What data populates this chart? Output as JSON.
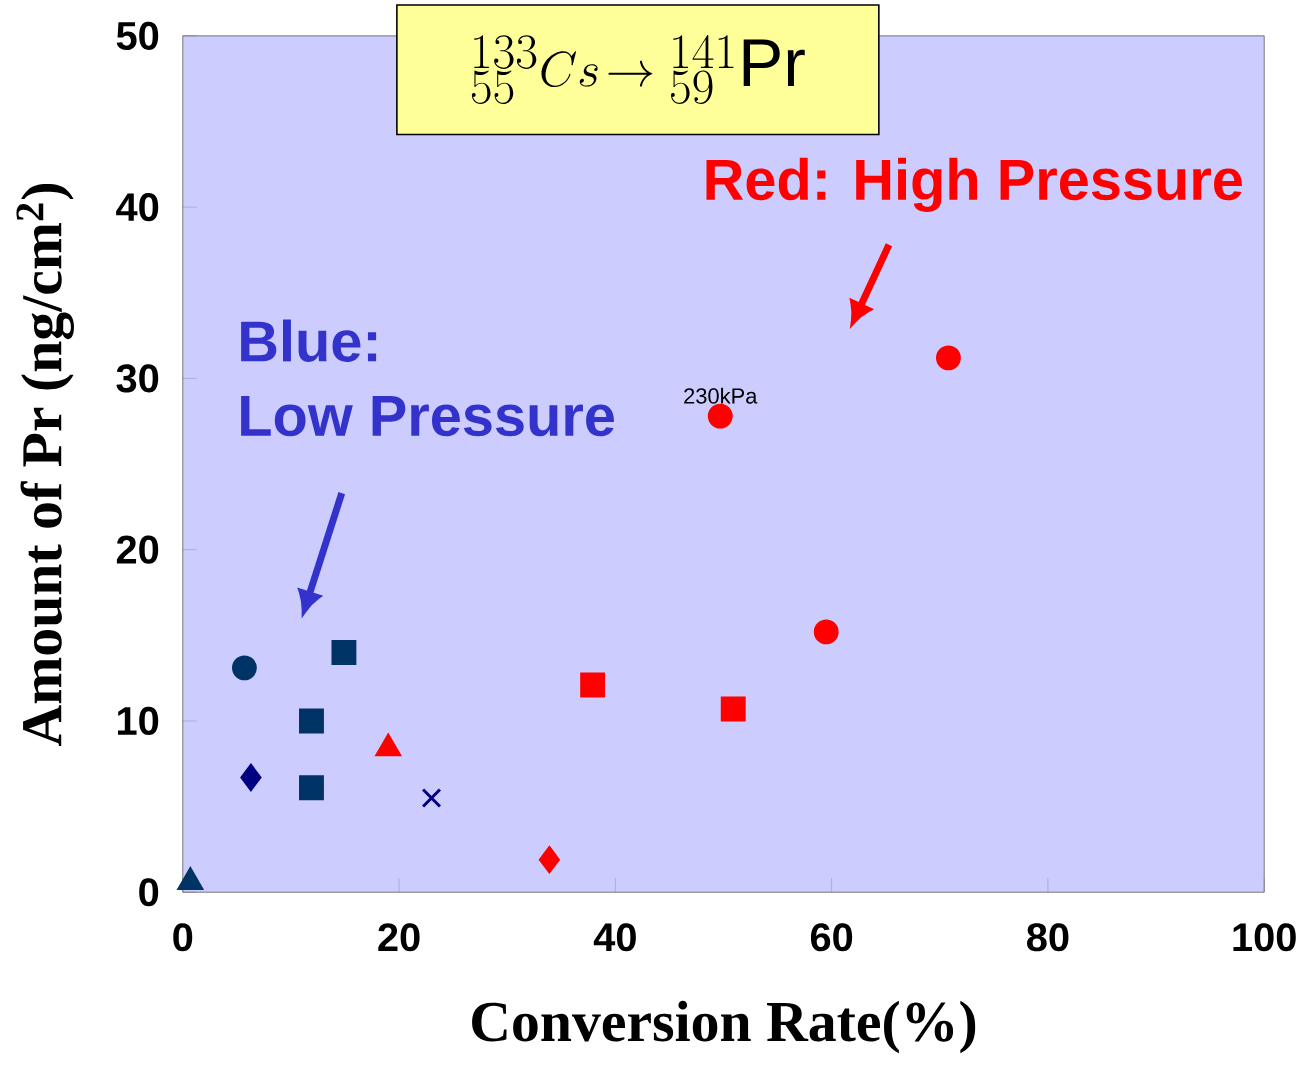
{
  "chart_data": {
    "type": "scatter",
    "title": "{}^{133}_{55}Cs\\!\\rightarrow{}^{141}_{59}\\mathrm{Pr}",
    "xlabel": "Conversion Rate(%)",
    "ylabel": "Amount of Pr (ng/cm$^{2}$)",
    "xlim": [
      0,
      100
    ],
    "ylim": [
      0,
      50
    ],
    "xticks": [
      0,
      20,
      40,
      60,
      80,
      100
    ],
    "yticks": [
      0,
      10,
      20,
      30,
      40,
      50
    ],
    "grid": false,
    "annotations": [
      "Red: High Pressure",
      "Blue:",
      "Low Pressure",
      {
        "text": "230kPa",
        "x": 49.7,
        "y": 27.8
      }
    ],
    "series": [
      {
        "color": "#003366",
        "marker": "circle",
        "x": [
          5.7
        ],
        "values": [
          13.1
        ]
      },
      {
        "color": "#003366",
        "marker": "square",
        "x": [
          14.9,
          11.9,
          11.9
        ],
        "values": [
          14.0,
          10.0,
          6.1
        ]
      },
      {
        "color": "#000080",
        "marker": "diamond",
        "x": [
          6.3
        ],
        "values": [
          6.7
        ]
      },
      {
        "color": "#000080",
        "marker": "cross",
        "x": [
          23.0
        ],
        "values": [
          5.5
        ]
      },
      {
        "color": "#003366",
        "marker": "triangle",
        "x": [
          0.7
        ],
        "values": [
          0.6
        ]
      },
      {
        "color": "#ff0000",
        "marker": "circle",
        "x": [
          49.7,
          70.8,
          59.5
        ],
        "values": [
          27.8,
          31.2,
          15.2
        ]
      },
      {
        "color": "#ff0000",
        "marker": "square",
        "x": [
          37.9,
          50.9
        ],
        "values": [
          12.1,
          10.7
        ]
      },
      {
        "color": "#ff0000",
        "marker": "triangle",
        "x": [
          19.0
        ],
        "values": [
          8.4
        ]
      },
      {
        "color": "#ff0000",
        "marker": "diamond",
        "x": [
          33.9
        ],
        "values": [
          1.9
        ]
      }
    ]
  }
}
